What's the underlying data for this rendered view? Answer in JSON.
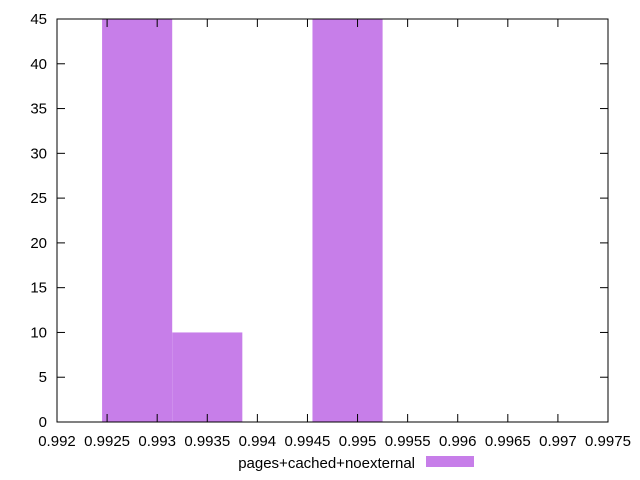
{
  "chart_data": {
    "type": "bar",
    "bars": [
      {
        "x_start": 0.99245,
        "x_end": 0.99315,
        "value": 45
      },
      {
        "x_start": 0.99315,
        "x_end": 0.99385,
        "value": 10
      },
      {
        "x_start": 0.99385,
        "x_end": 0.99455,
        "value": 0
      },
      {
        "x_start": 0.99455,
        "x_end": 0.99525,
        "value": 45
      }
    ],
    "x_ticks": [
      "0.992",
      "0.9925",
      "0.993",
      "0.9935",
      "0.994",
      "0.9945",
      "0.995",
      "0.9955",
      "0.996",
      "0.9965",
      "0.997",
      "0.9975"
    ],
    "x_tick_values": [
      0.992,
      0.9925,
      0.993,
      0.9935,
      0.994,
      0.9945,
      0.995,
      0.9955,
      0.996,
      0.9965,
      0.997,
      0.9975
    ],
    "y_ticks": [
      "0",
      "5",
      "10",
      "15",
      "20",
      "25",
      "30",
      "35",
      "40",
      "45"
    ],
    "y_tick_values": [
      0,
      5,
      10,
      15,
      20,
      25,
      30,
      35,
      40,
      45
    ],
    "xlim": [
      0.992,
      0.9975
    ],
    "ylim": [
      0,
      45
    ],
    "title": "",
    "xlabel": "",
    "ylabel": "",
    "grid": false,
    "legend_position": "bottom-center",
    "series": [
      {
        "name": "pages+cached+noexternal",
        "color": "#c77ee9"
      }
    ]
  }
}
